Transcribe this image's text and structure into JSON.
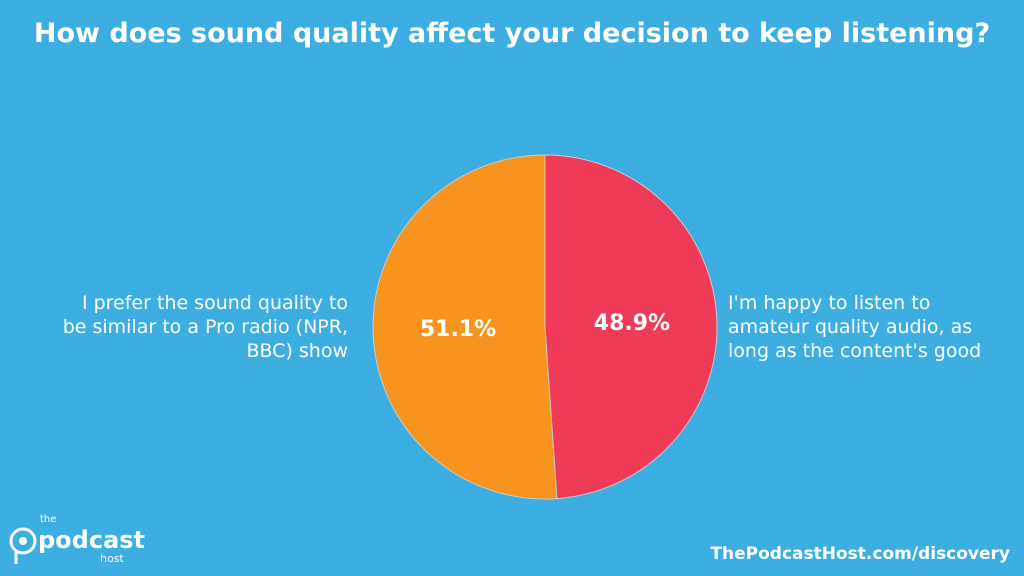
{
  "chart_data": {
    "type": "pie",
    "title": "How does sound quality affect your decision to keep listening?",
    "categories": [
      "I'm happy to listen to amateur quality audio, as long as the content's good",
      "I prefer the sound quality to be similar to a Pro radio (NPR, BBC) show"
    ],
    "values": [
      48.9,
      51.1
    ],
    "value_labels": [
      "48.9%",
      "51.1%"
    ],
    "colors": [
      "#ef3b57",
      "#f7941e"
    ]
  },
  "footer": {
    "logo": {
      "small": "the",
      "main": "podcast",
      "sub": "host"
    },
    "url": "ThePodcastHost.com/discovery"
  }
}
